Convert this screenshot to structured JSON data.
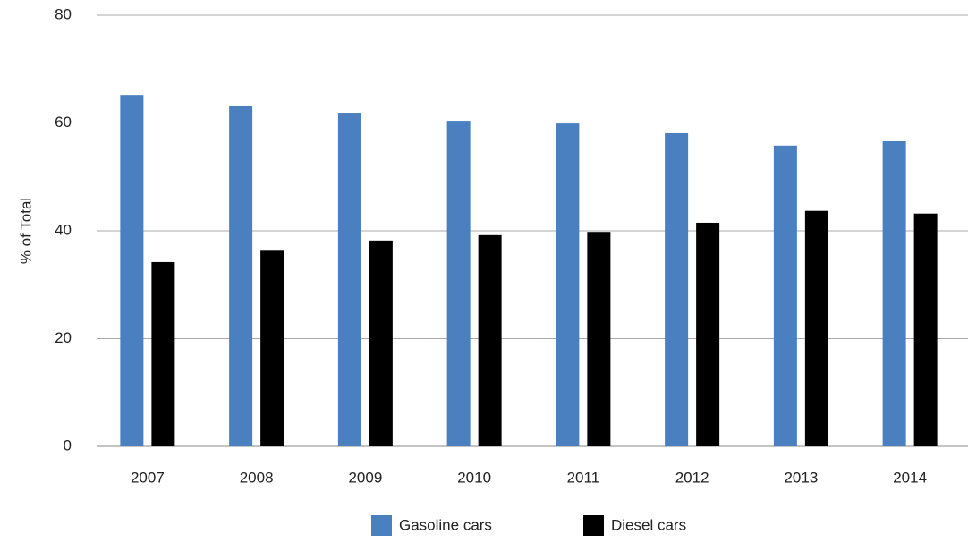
{
  "chart_data": {
    "type": "bar",
    "y_label": "% of Total",
    "categories": [
      "2007",
      "2008",
      "2009",
      "2010",
      "2011",
      "2012",
      "2013",
      "2014"
    ],
    "series": [
      {
        "name": "Gasoline cars",
        "color": "#4a80c0",
        "values": [
          65.2,
          63.2,
          61.9,
          60.4,
          59.9,
          58.1,
          55.8,
          56.6
        ]
      },
      {
        "name": "Diesel cars",
        "color": "#000000",
        "values": [
          34.2,
          36.3,
          38.2,
          39.2,
          39.8,
          41.5,
          43.7,
          43.2
        ]
      }
    ],
    "ylim": [
      0,
      80
    ],
    "yticks": [
      0,
      20,
      40,
      60,
      80
    ],
    "grid": true,
    "legend": "bottom"
  }
}
